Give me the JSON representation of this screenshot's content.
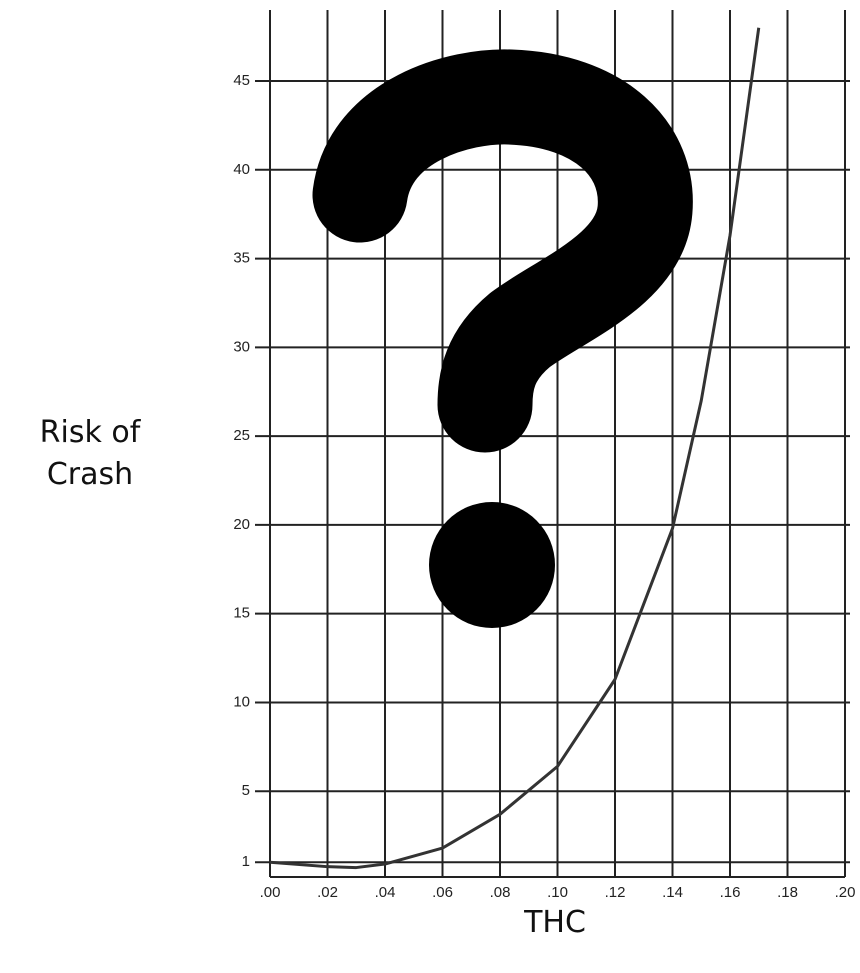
{
  "chart_data": {
    "type": "line",
    "xlabel": "THC",
    "ylabel": "Risk of Crash",
    "x": [
      0,
      0.02,
      0.03,
      0.04,
      0.06,
      0.08,
      0.1,
      0.12,
      0.14,
      0.15,
      0.16,
      0.17
    ],
    "series": [
      {
        "color": "#333333",
        "values": [
          1.0,
          0.75,
          0.7,
          0.9,
          1.8,
          3.7,
          6.4,
          11.3,
          19.8,
          27,
          36.3,
          48
        ]
      }
    ],
    "xlim": [
      0,
      0.2
    ],
    "ylim": [
      0,
      49
    ],
    "xticks": [
      {
        "value": 0,
        "label": ".00"
      },
      {
        "value": 0.02,
        "label": ".02"
      },
      {
        "value": 0.04,
        "label": ".04"
      },
      {
        "value": 0.06,
        "label": ".06"
      },
      {
        "value": 0.08,
        "label": ".08"
      },
      {
        "value": 0.1,
        "label": ".10"
      },
      {
        "value": 0.12,
        "label": ".12"
      },
      {
        "value": 0.14,
        "label": ".14"
      },
      {
        "value": 0.16,
        "label": ".16"
      },
      {
        "value": 0.18,
        "label": ".18"
      },
      {
        "value": 0.2,
        "label": ".20"
      }
    ],
    "yticks": [
      1,
      5,
      10,
      15,
      20,
      25,
      30,
      35,
      40,
      45
    ],
    "grid": true
  }
}
